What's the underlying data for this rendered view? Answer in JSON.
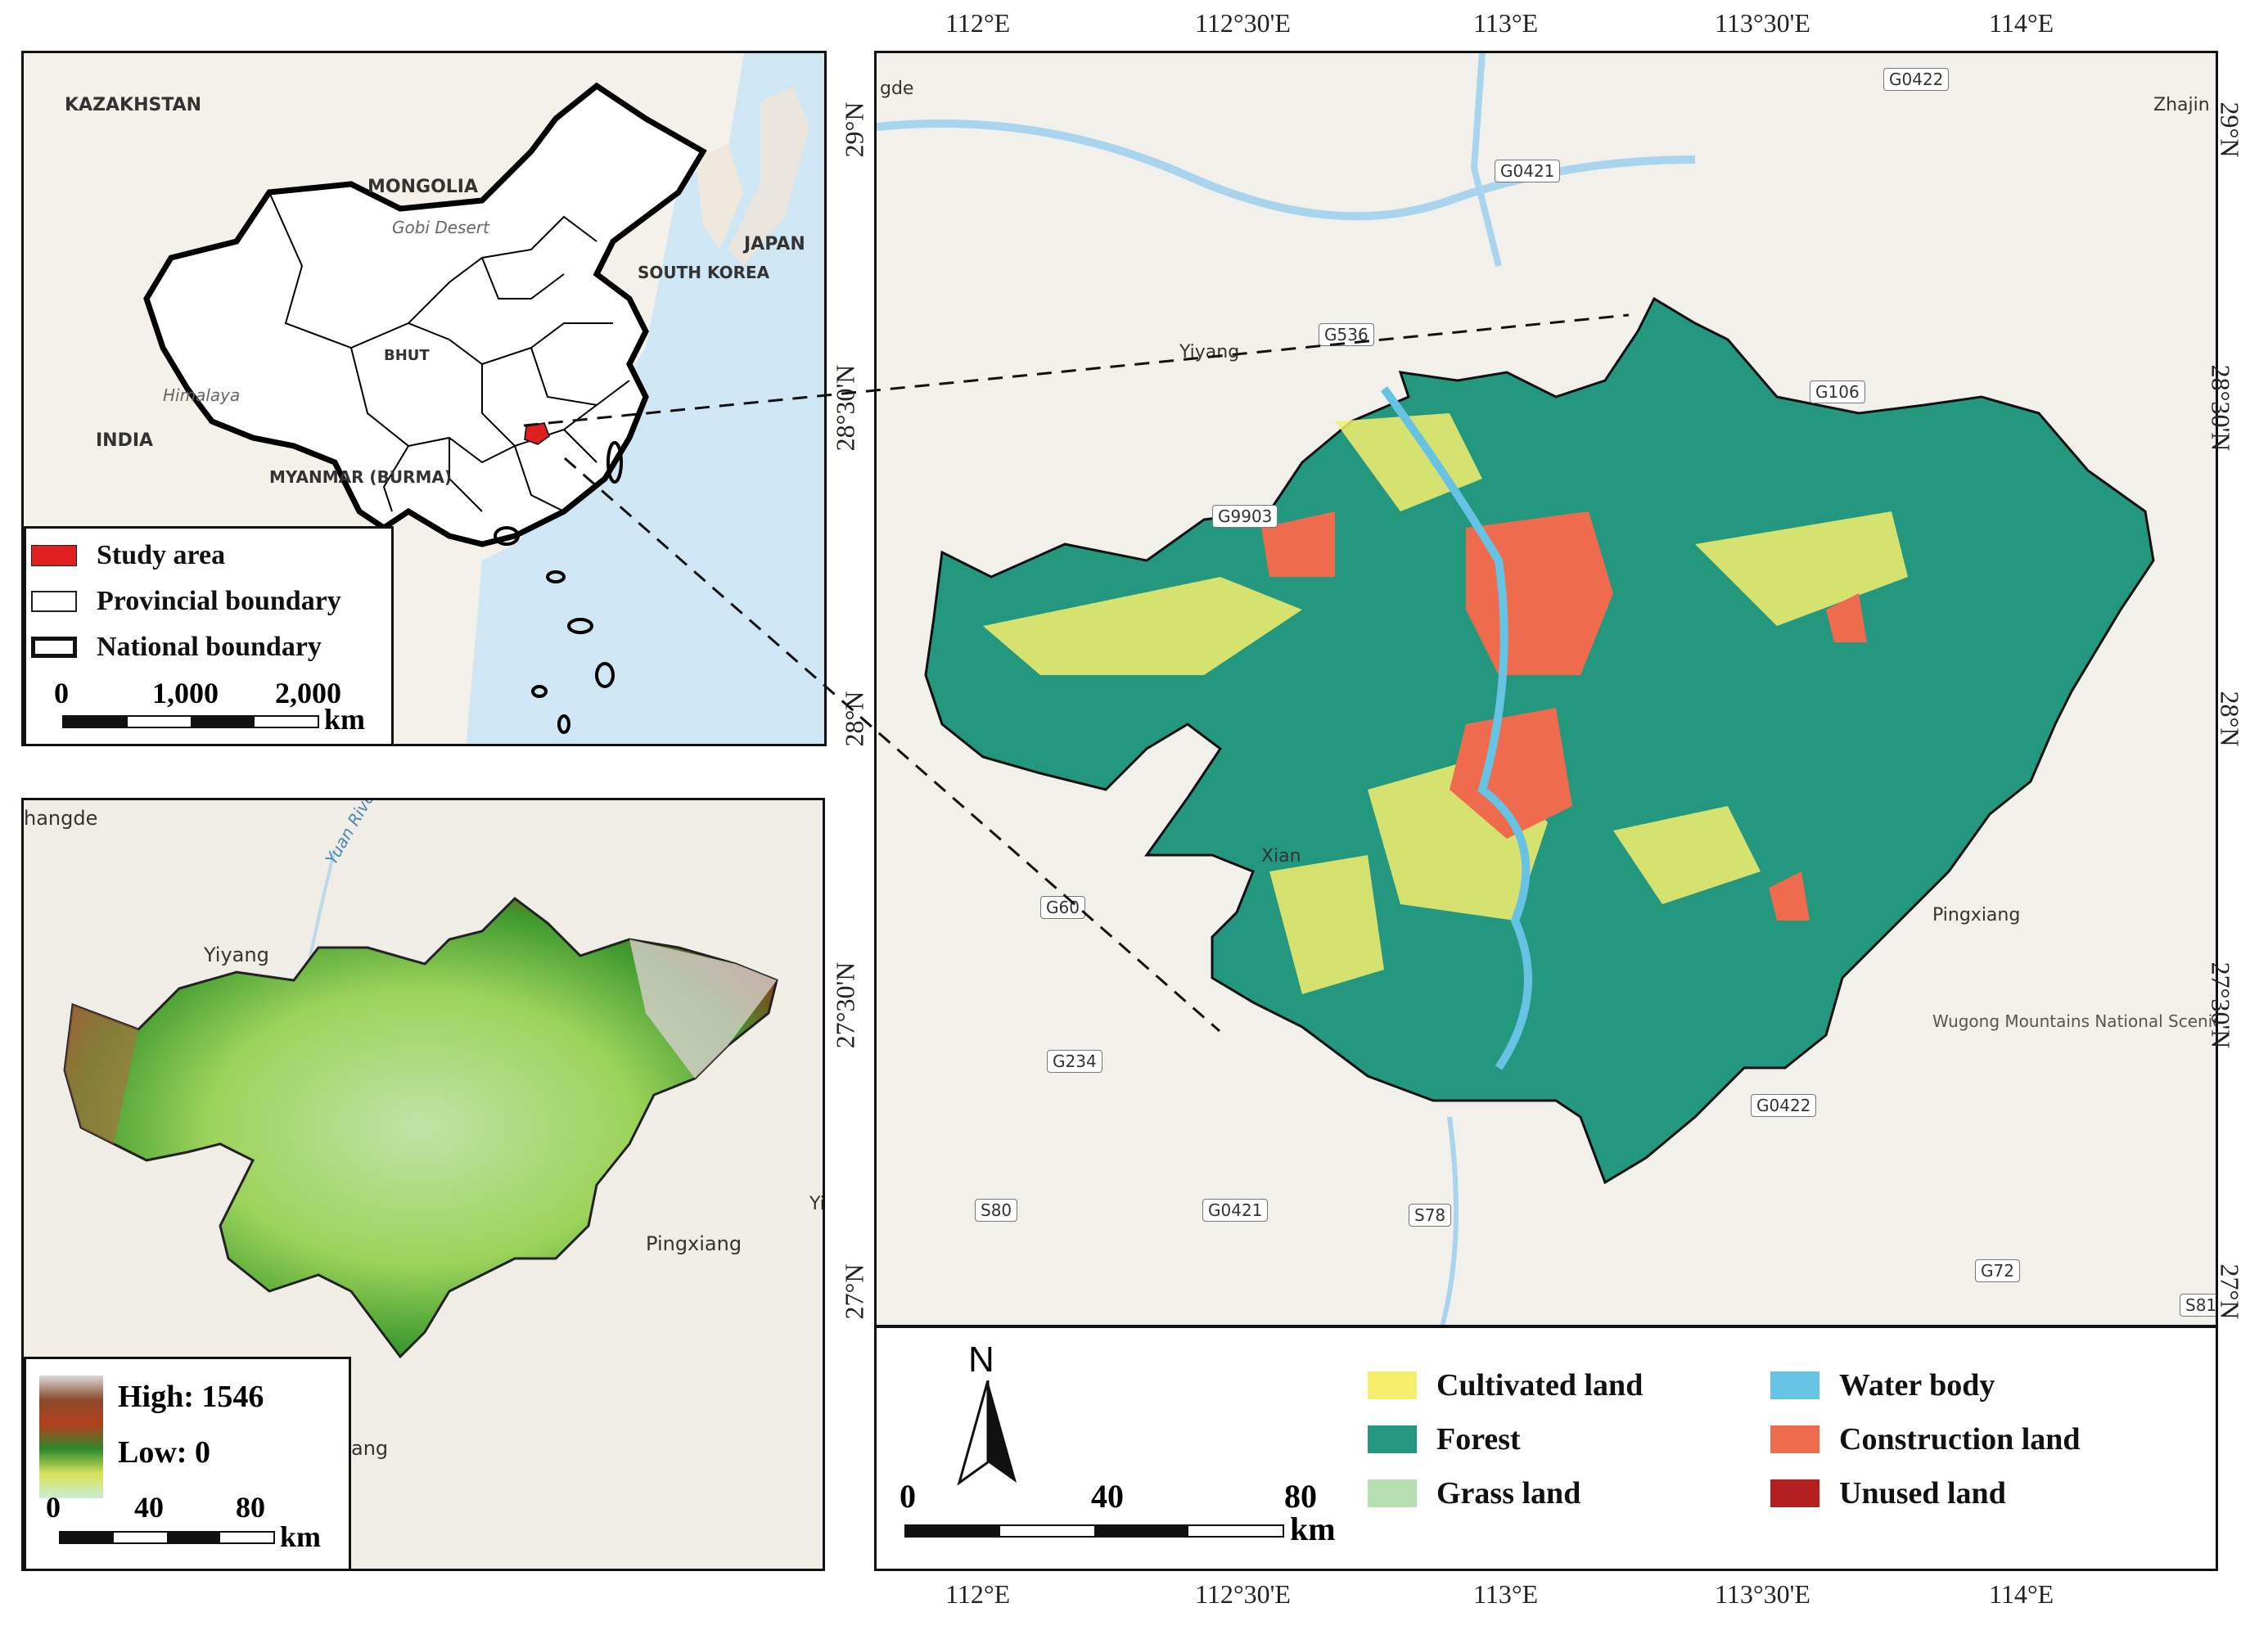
{
  "china_inset": {
    "countries": [
      "KAZAKHSTAN",
      "MONGOLIA",
      "JAPAN",
      "SOUTH KOREA",
      "INDIA",
      "MYANMAR (BURMA)"
    ],
    "features": [
      "Gobi Desert",
      "Himalaya",
      "BHUT"
    ],
    "legend": {
      "study_area": "Study area",
      "provincial": "Provincial boundary",
      "national": "National boundary"
    },
    "scale": {
      "ticks": [
        "0",
        "1,000",
        "2,000"
      ],
      "unit": "km"
    },
    "colors": {
      "study_area": "#e02020",
      "ocean": "#cfe6f5",
      "land": "#f4f1ea"
    }
  },
  "dem_inset": {
    "places": [
      "hangde",
      "Yiyang",
      "Pingxiang",
      "Yuan River",
      "ang",
      "Yi"
    ],
    "legend": {
      "high": "High: 1546",
      "low": "Low: 0"
    },
    "scale": {
      "ticks": [
        "0",
        "40",
        "80"
      ],
      "unit": "km"
    }
  },
  "main_map": {
    "lon_ticks": [
      "112°E",
      "112°30'E",
      "113°E",
      "113°30'E",
      "114°E"
    ],
    "lat_ticks": [
      "29°N",
      "28°30'N",
      "28°N",
      "27°30'N",
      "27°N"
    ],
    "places": [
      "gde",
      "Zhajin",
      "Yiyang",
      "Xian",
      "Pingxiang",
      "Wugong Mountains National Scenic Area"
    ],
    "roads": [
      "G0422",
      "G0421",
      "G536",
      "G106",
      "G9903",
      "G60",
      "G234",
      "G0422",
      "S80",
      "G0421",
      "S78",
      "G72",
      "S81"
    ]
  },
  "landuse_legend": {
    "north": "N",
    "items": [
      {
        "label": "Cultivated land",
        "color": "#f4ee6c"
      },
      {
        "label": "Forest",
        "color": "#23987f"
      },
      {
        "label": "Grass land",
        "color": "#b6dfb4"
      },
      {
        "label": "Water body",
        "color": "#66c3e3"
      },
      {
        "label": "Construction land",
        "color": "#ee6b4e"
      },
      {
        "label": "Unused land",
        "color": "#b3201d"
      }
    ],
    "scale": {
      "ticks": [
        "0",
        "40",
        "80"
      ],
      "unit": "km"
    }
  }
}
